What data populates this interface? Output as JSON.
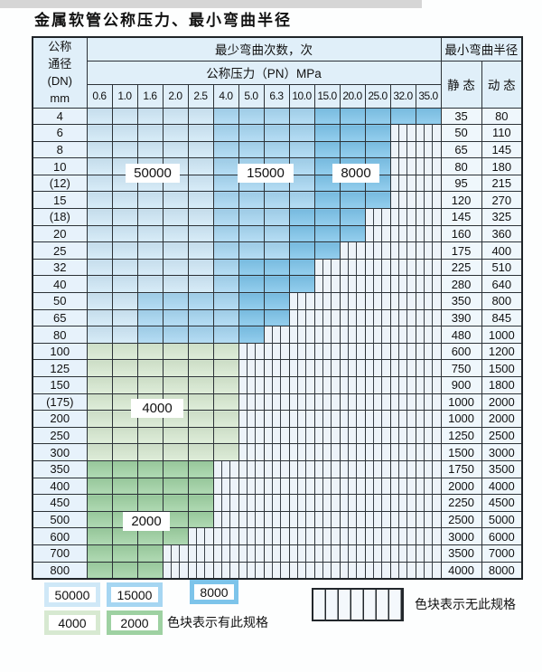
{
  "title": "金属软管公称压力、最小弯曲半径",
  "colors": {
    "50000": "#cfe8f7",
    "15000": "#a6d6f2",
    "8000": "#7dc4ea",
    "4000": "#d7e9d1",
    "2000": "#9ed1a2",
    "hatch_bg": "#edf3f9",
    "hatch_line": "#3a4149",
    "header_bg": "#e0eff9",
    "dn_bg": "#e7f2fb",
    "val_bg": "#eff7fc",
    "border": "#2c3237",
    "outer": "#1f2428"
  },
  "table": {
    "header": {
      "dn_lines": [
        "公称",
        "通径",
        "(DN)",
        "mm"
      ],
      "cycles_title": "最少弯曲次数，次",
      "pressure_title": "公称压力（PN）MPa",
      "radius_title": "最小弯曲半径",
      "static_label": "静 态",
      "dynamic_label": "动 态",
      "pressures": [
        "0.6",
        "1.0",
        "1.6",
        "2.0",
        "2.5",
        "4.0",
        "5.0",
        "6.3",
        "10.0",
        "15.0",
        "20.0",
        "25.0",
        "32.0",
        "35.0"
      ]
    },
    "rows": [
      {
        "dn": "4",
        "cells": [
          "50000",
          "50000",
          "50000",
          "50000",
          "50000",
          "15000",
          "15000",
          "15000",
          "15000",
          "8000",
          "8000",
          "8000",
          "8000",
          "8000"
        ],
        "static": "35",
        "dynamic": "80"
      },
      {
        "dn": "6",
        "cells": [
          "50000",
          "50000",
          "50000",
          "50000",
          "50000",
          "15000",
          "15000",
          "15000",
          "15000",
          "8000",
          "8000",
          "8000",
          "none",
          "none"
        ],
        "static": "50",
        "dynamic": "110"
      },
      {
        "dn": "8",
        "cells": [
          "50000",
          "50000",
          "50000",
          "50000",
          "50000",
          "15000",
          "15000",
          "15000",
          "15000",
          "8000",
          "8000",
          "8000",
          "none",
          "none"
        ],
        "static": "65",
        "dynamic": "145"
      },
      {
        "dn": "10",
        "cells": [
          "50000",
          "50000",
          "50000",
          "50000",
          "50000",
          "15000",
          "15000",
          "15000",
          "15000",
          "8000",
          "8000",
          "8000",
          "none",
          "none"
        ],
        "static": "80",
        "dynamic": "180"
      },
      {
        "dn": "(12)",
        "cells": [
          "50000",
          "50000",
          "50000",
          "50000",
          "50000",
          "15000",
          "15000",
          "15000",
          "15000",
          "8000",
          "8000",
          "8000",
          "none",
          "none"
        ],
        "static": "95",
        "dynamic": "215"
      },
      {
        "dn": "15",
        "cells": [
          "50000",
          "50000",
          "50000",
          "50000",
          "50000",
          "15000",
          "15000",
          "15000",
          "15000",
          "8000",
          "8000",
          "8000",
          "none",
          "none"
        ],
        "static": "120",
        "dynamic": "270"
      },
      {
        "dn": "(18)",
        "cells": [
          "50000",
          "50000",
          "50000",
          "50000",
          "50000",
          "15000",
          "15000",
          "15000",
          "8000",
          "8000",
          "8000",
          "none",
          "none",
          "none"
        ],
        "static": "145",
        "dynamic": "325"
      },
      {
        "dn": "20",
        "cells": [
          "50000",
          "50000",
          "50000",
          "50000",
          "50000",
          "15000",
          "15000",
          "15000",
          "8000",
          "8000",
          "8000",
          "none",
          "none",
          "none"
        ],
        "static": "160",
        "dynamic": "360"
      },
      {
        "dn": "25",
        "cells": [
          "50000",
          "50000",
          "50000",
          "50000",
          "50000",
          "15000",
          "15000",
          "15000",
          "8000",
          "8000",
          "none",
          "none",
          "none",
          "none"
        ],
        "static": "175",
        "dynamic": "400"
      },
      {
        "dn": "32",
        "cells": [
          "50000",
          "50000",
          "50000",
          "50000",
          "50000",
          "15000",
          "8000",
          "8000",
          "8000",
          "none",
          "none",
          "none",
          "none",
          "none"
        ],
        "static": "225",
        "dynamic": "510"
      },
      {
        "dn": "40",
        "cells": [
          "50000",
          "50000",
          "50000",
          "50000",
          "50000",
          "15000",
          "8000",
          "8000",
          "8000",
          "none",
          "none",
          "none",
          "none",
          "none"
        ],
        "static": "280",
        "dynamic": "640"
      },
      {
        "dn": "50",
        "cells": [
          "50000",
          "50000",
          "15000",
          "15000",
          "15000",
          "15000",
          "8000",
          "8000",
          "none",
          "none",
          "none",
          "none",
          "none",
          "none"
        ],
        "static": "350",
        "dynamic": "800"
      },
      {
        "dn": "65",
        "cells": [
          "50000",
          "50000",
          "15000",
          "15000",
          "15000",
          "15000",
          "8000",
          "8000",
          "none",
          "none",
          "none",
          "none",
          "none",
          "none"
        ],
        "static": "390",
        "dynamic": "845"
      },
      {
        "dn": "80",
        "cells": [
          "50000",
          "50000",
          "15000",
          "15000",
          "15000",
          "15000",
          "8000",
          "none",
          "none",
          "none",
          "none",
          "none",
          "none",
          "none"
        ],
        "static": "480",
        "dynamic": "1000"
      },
      {
        "dn": "100",
        "cells": [
          "4000",
          "4000",
          "4000",
          "4000",
          "4000",
          "4000",
          "none",
          "none",
          "none",
          "none",
          "none",
          "none",
          "none",
          "none"
        ],
        "static": "600",
        "dynamic": "1200"
      },
      {
        "dn": "125",
        "cells": [
          "4000",
          "4000",
          "4000",
          "4000",
          "4000",
          "4000",
          "none",
          "none",
          "none",
          "none",
          "none",
          "none",
          "none",
          "none"
        ],
        "static": "750",
        "dynamic": "1500"
      },
      {
        "dn": "150",
        "cells": [
          "4000",
          "4000",
          "4000",
          "4000",
          "4000",
          "4000",
          "none",
          "none",
          "none",
          "none",
          "none",
          "none",
          "none",
          "none"
        ],
        "static": "900",
        "dynamic": "1800"
      },
      {
        "dn": "(175)",
        "cells": [
          "4000",
          "4000",
          "4000",
          "4000",
          "4000",
          "4000",
          "none",
          "none",
          "none",
          "none",
          "none",
          "none",
          "none",
          "none"
        ],
        "static": "1000",
        "dynamic": "2000"
      },
      {
        "dn": "200",
        "cells": [
          "4000",
          "4000",
          "4000",
          "4000",
          "4000",
          "4000",
          "none",
          "none",
          "none",
          "none",
          "none",
          "none",
          "none",
          "none"
        ],
        "static": "1000",
        "dynamic": "2000"
      },
      {
        "dn": "250",
        "cells": [
          "4000",
          "4000",
          "4000",
          "4000",
          "4000",
          "4000",
          "none",
          "none",
          "none",
          "none",
          "none",
          "none",
          "none",
          "none"
        ],
        "static": "1250",
        "dynamic": "2500"
      },
      {
        "dn": "300",
        "cells": [
          "4000",
          "4000",
          "4000",
          "4000",
          "4000",
          "4000",
          "none",
          "none",
          "none",
          "none",
          "none",
          "none",
          "none",
          "none"
        ],
        "static": "1500",
        "dynamic": "3000"
      },
      {
        "dn": "350",
        "cells": [
          "2000",
          "2000",
          "2000",
          "2000",
          "2000",
          "none",
          "none",
          "none",
          "none",
          "none",
          "none",
          "none",
          "none",
          "none"
        ],
        "static": "1750",
        "dynamic": "3500"
      },
      {
        "dn": "400",
        "cells": [
          "2000",
          "2000",
          "2000",
          "2000",
          "2000",
          "none",
          "none",
          "none",
          "none",
          "none",
          "none",
          "none",
          "none",
          "none"
        ],
        "static": "2000",
        "dynamic": "4000"
      },
      {
        "dn": "450",
        "cells": [
          "2000",
          "2000",
          "2000",
          "2000",
          "2000",
          "none",
          "none",
          "none",
          "none",
          "none",
          "none",
          "none",
          "none",
          "none"
        ],
        "static": "2250",
        "dynamic": "4500"
      },
      {
        "dn": "500",
        "cells": [
          "2000",
          "2000",
          "2000",
          "2000",
          "2000",
          "none",
          "none",
          "none",
          "none",
          "none",
          "none",
          "none",
          "none",
          "none"
        ],
        "static": "2500",
        "dynamic": "5000"
      },
      {
        "dn": "600",
        "cells": [
          "2000",
          "2000",
          "2000",
          "2000",
          "none",
          "none",
          "none",
          "none",
          "none",
          "none",
          "none",
          "none",
          "none",
          "none"
        ],
        "static": "3000",
        "dynamic": "6000"
      },
      {
        "dn": "700",
        "cells": [
          "2000",
          "2000",
          "2000",
          "none",
          "none",
          "none",
          "none",
          "none",
          "none",
          "none",
          "none",
          "none",
          "none",
          "none"
        ],
        "static": "3500",
        "dynamic": "7000"
      },
      {
        "dn": "800",
        "cells": [
          "2000",
          "2000",
          "2000",
          "none",
          "none",
          "none",
          "none",
          "none",
          "none",
          "none",
          "none",
          "none",
          "none",
          "none"
        ],
        "static": "4000",
        "dynamic": "8000"
      }
    ]
  },
  "region_labels": [
    {
      "text": "50000"
    },
    {
      "text": "15000"
    },
    {
      "text": "8000"
    },
    {
      "text": "4000"
    },
    {
      "text": "2000"
    }
  ],
  "legend": {
    "chips": [
      {
        "code": "50000",
        "label": "50000"
      },
      {
        "code": "15000",
        "label": "15000"
      },
      {
        "code": "8000",
        "label": "8000"
      },
      {
        "code": "4000",
        "label": "4000"
      },
      {
        "code": "2000",
        "label": "2000"
      }
    ],
    "has_spec_text": "色块表示有此规格",
    "no_spec_text": "色块表示无此规格"
  }
}
